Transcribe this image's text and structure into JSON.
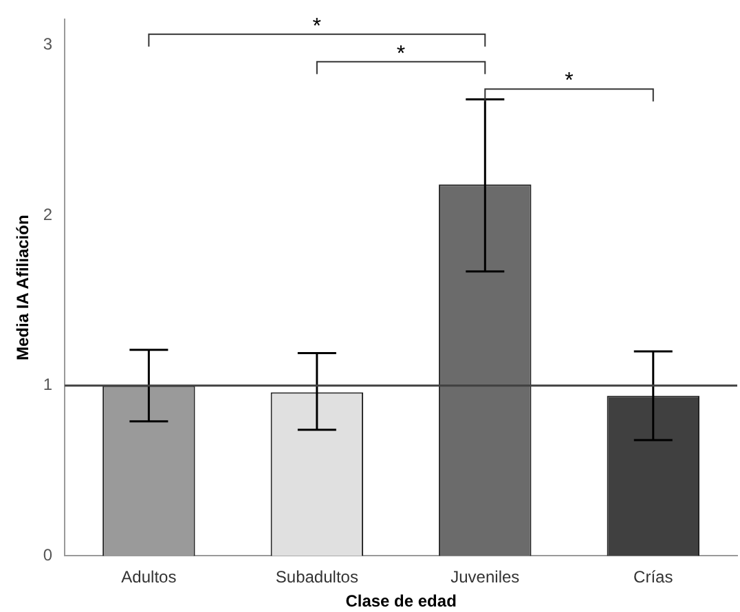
{
  "chart_data": {
    "type": "bar",
    "xlabel": "Clase de edad",
    "ylabel": "Media IA Afiliación",
    "categories": [
      "Adultos",
      "Subadultos",
      "Juveniles",
      "Crías"
    ],
    "values": [
      1.0,
      0.96,
      2.18,
      0.94
    ],
    "colors": [
      "#9a9a9a",
      "#e0e0e0",
      "#6b6b6b",
      "#404040"
    ],
    "errors": [
      [
        0.79,
        1.21
      ],
      [
        0.74,
        1.19
      ],
      [
        1.67,
        2.68
      ],
      [
        0.68,
        1.2
      ]
    ],
    "ylim": [
      0,
      3.15
    ],
    "yticks": [
      0,
      1,
      2,
      3
    ],
    "grid": false,
    "legend": false,
    "ref_lines": [
      {
        "axis": "y",
        "value": 1,
        "color": "#404040"
      }
    ],
    "annotations": [
      "*",
      "*",
      "*"
    ]
  }
}
